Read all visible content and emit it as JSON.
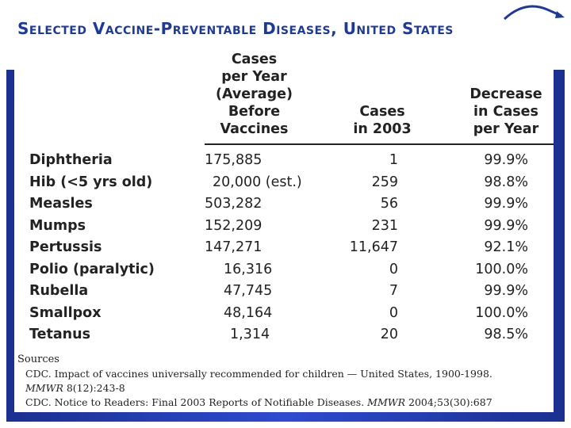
{
  "title": "Selected Vaccine-Preventable Diseases, United States",
  "columns": {
    "disease": "",
    "before_lines": [
      "Cases",
      "per Year",
      "(Average)",
      "Before",
      "Vaccines"
    ],
    "in2003_lines": [
      "Cases",
      "in 2003"
    ],
    "decrease_lines": [
      "Decrease",
      "in Cases",
      "per Year"
    ]
  },
  "rows": [
    {
      "disease": "Diphtheria",
      "before": "175,885",
      "in2003": "1",
      "decrease": "99.9%"
    },
    {
      "disease": "Hib (<5 yrs old)",
      "before": "20,000 (est.)",
      "in2003": "259",
      "decrease": "98.8%"
    },
    {
      "disease": "Measles",
      "before": "503,282",
      "in2003": "56",
      "decrease": "99.9%"
    },
    {
      "disease": "Mumps",
      "before": "152,209",
      "in2003": "231",
      "decrease": "99.9%"
    },
    {
      "disease": "Pertussis",
      "before": "147,271",
      "in2003": "11,647",
      "decrease": "92.1%"
    },
    {
      "disease": "Polio (paralytic)",
      "before": "16,316",
      "in2003": "0",
      "decrease": "100.0%"
    },
    {
      "disease": "Rubella",
      "before": "47,745",
      "in2003": "7",
      "decrease": "99.9%"
    },
    {
      "disease": "Smallpox",
      "before": "48,164",
      "in2003": "0",
      "decrease": "100.0%"
    },
    {
      "disease": "Tetanus",
      "before": "1,314",
      "in2003": "20",
      "decrease": "98.5%"
    }
  ],
  "sources": {
    "heading": "Sources",
    "line1": "CDC. Impact of vaccines universally recommended for children — United States, 1900-1998.",
    "line2_italic": "MMWR",
    "line2_rest": " 8(12):243-8",
    "line3_start": "CDC. Notice to Readers: Final 2003 Reports of Notifiable Diseases. ",
    "line3_italic": "MMWR",
    "line3_end": " 2004;53(30):687"
  },
  "colors": {
    "title": "#1f3a93",
    "frame": "#2e4bcf"
  }
}
